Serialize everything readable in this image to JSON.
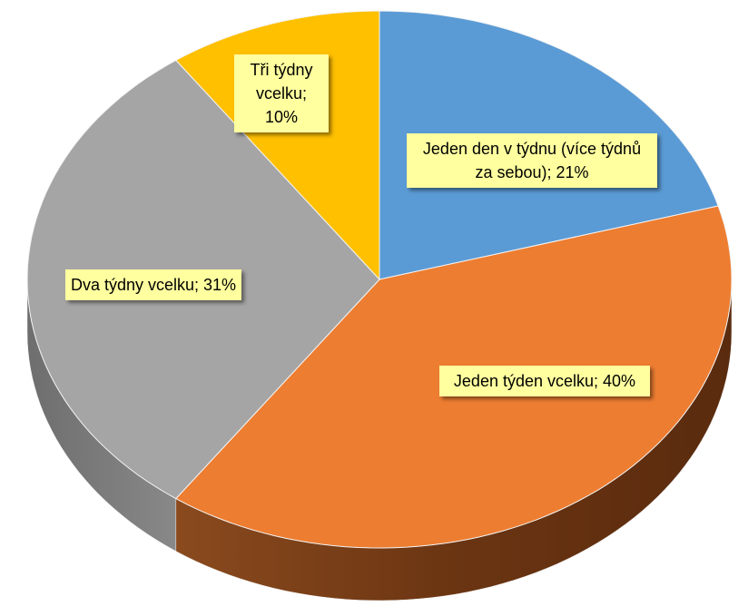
{
  "chart_data": {
    "type": "pie",
    "values": [
      21,
      40,
      31,
      10
    ],
    "value_labels": [
      "Jeden den v týdnu (více týdnů za sebou); 21%",
      "Jeden týden vcelku; 40%",
      "Dva týdny vcelku; 31%",
      "Tři týdny vcelku; 10%"
    ],
    "colors": [
      "#5b9bd5",
      "#ed7d31",
      "#a5a5a5",
      "#ffc000"
    ],
    "start_angle": 0,
    "direction": "clockwise",
    "three_d": true
  }
}
